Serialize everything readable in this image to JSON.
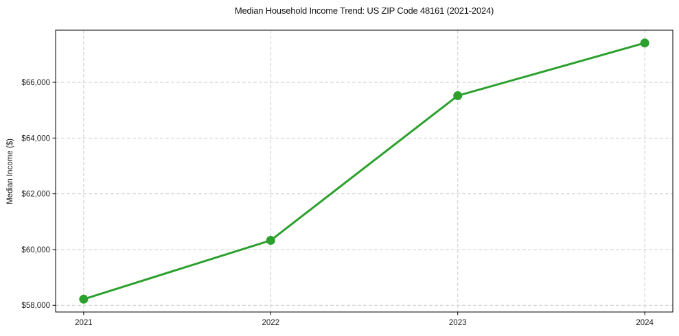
{
  "figure": {
    "background": "#ffffff"
  },
  "chart_data": {
    "type": "line",
    "title": "Median Household Income Trend: US ZIP Code 48161 (2021-2024)",
    "xlabel": "",
    "ylabel": "Median Income ($)",
    "categories": [
      "2021",
      "2022",
      "2023",
      "2024"
    ],
    "values": [
      58220,
      60330,
      65520,
      67410
    ],
    "ylim": [
      57760,
      67870
    ],
    "yticks": {
      "values": [
        58000,
        60000,
        62000,
        64000,
        66000
      ],
      "labels": [
        "$58,000",
        "$60,000",
        "$62,000",
        "$64,000",
        "$66,000"
      ]
    },
    "grid": true,
    "grid_style": "dashed",
    "legend": "none",
    "marker": "circle",
    "colors": {
      "line": "#2ca02c",
      "marker": "#2ca02c",
      "grid": "#cccccc",
      "spine": "#000000",
      "text": "#1a1a1a"
    }
  }
}
